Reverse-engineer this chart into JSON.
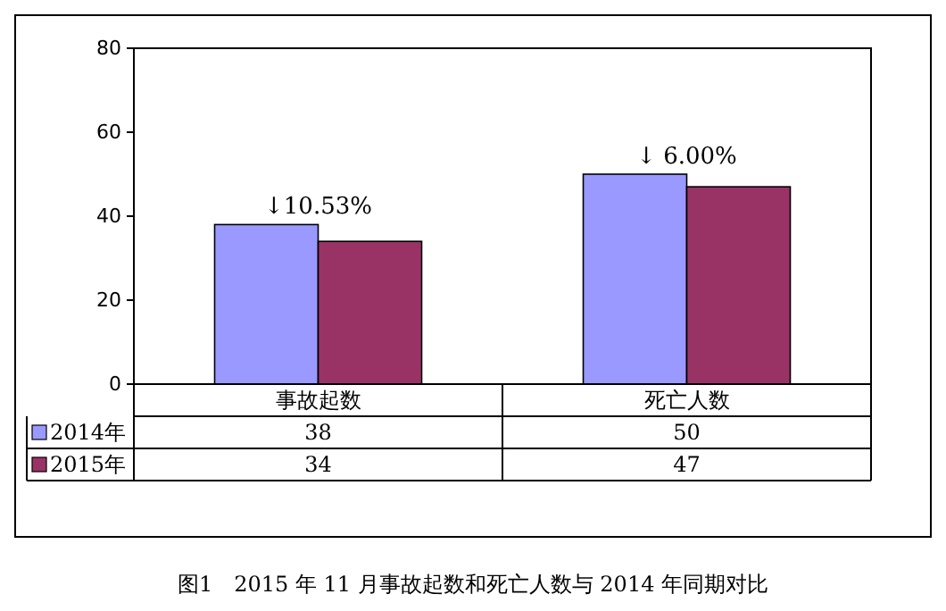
{
  "chart_data": {
    "type": "bar",
    "title": "图1　2015 年 11 月事故起数和死亡人数与 2014 年同期对比",
    "categories": [
      "事故起数",
      "死亡人数"
    ],
    "series": [
      {
        "name": "2014年",
        "color": "#9999ff",
        "values": [
          38,
          50
        ]
      },
      {
        "name": "2015年",
        "color": "#993366",
        "values": [
          34,
          47
        ]
      }
    ],
    "ylim": [
      0,
      80
    ],
    "yticks": [
      0,
      20,
      40,
      60,
      80
    ],
    "grid": false,
    "legend": "bottom",
    "data_labels": true,
    "annotations": [
      "↓10.53%",
      "↓ 6.00%"
    ]
  }
}
